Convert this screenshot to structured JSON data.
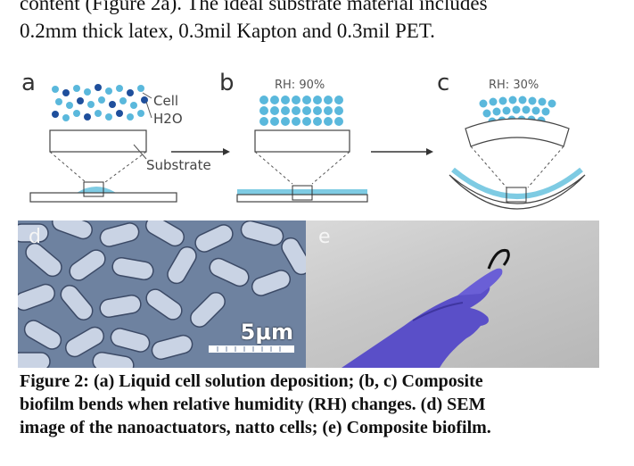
{
  "paragraph": {
    "line1": "content (Figure 2a). The ideal substrate material includes",
    "line2": "0.2mm thick latex, 0.3mil Kapton and 0.3mil PET."
  },
  "figure": {
    "panel_a": {
      "letter": "a",
      "cell_label": "Cell",
      "h2o_label": "H2O",
      "substrate_label": "Substrate"
    },
    "panel_b": {
      "letter": "b",
      "rh_label": "RH: 90%"
    },
    "panel_c": {
      "letter": "c",
      "rh_label": "RH: 30%"
    },
    "panel_d": {
      "letter": "d",
      "scale_label": "5μm"
    },
    "panel_e": {
      "letter": "e"
    },
    "colors": {
      "cell_blue": "#5ab8dc",
      "water_blue": "#1f4f9c",
      "film_blue": "#7ecbe3",
      "glove": "#5a4fc8"
    }
  },
  "caption": {
    "line1": "Figure 2: (a) Liquid cell solution deposition; (b, c) Composite",
    "line2": "biofilm bends when relative humidity (RH) changes. (d) SEM",
    "line3": "image of the nanoactuators, natto cells; (e) Composite biofilm."
  }
}
